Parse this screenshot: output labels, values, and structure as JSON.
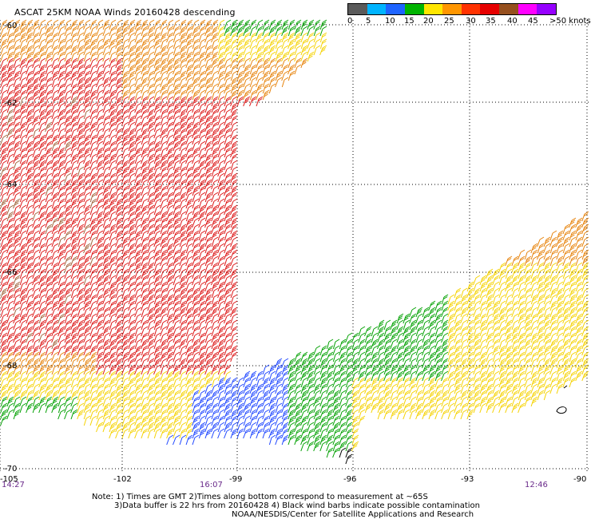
{
  "title": "ASCAT 25KM NOAA Winds 20160428 descending",
  "legend": {
    "colors": [
      "#5a5a5a",
      "#00b4ff",
      "#1e64ff",
      "#00b400",
      "#ffe600",
      "#ff9600",
      "#ff3200",
      "#e60000",
      "#96501e",
      "#ff00ff",
      "#9600ff"
    ],
    "labels": [
      "0",
      "5",
      "10",
      "15",
      "20",
      "25",
      "30",
      "35",
      "40",
      "45",
      ">50 knots"
    ]
  },
  "map": {
    "lat_labels": [
      "-60",
      "-62",
      "-64",
      "-66",
      "-68",
      "-70"
    ],
    "lon_labels": [
      "-105",
      "-102",
      "-99",
      "-96",
      "-93",
      "-90"
    ],
    "time_labels": [
      "14:27",
      "16:07",
      "12:46"
    ],
    "swath_colors": {
      "red": "#dc1414",
      "orange": "#e6820a",
      "yellow": "#f5d200",
      "green": "#00a000",
      "blue": "#1e46ff",
      "brown": "#a0643c",
      "black": "#000000"
    }
  },
  "notes": {
    "line1": "Note: 1) Times are GMT 2)Times along bottom correspond to measurement at ~65S",
    "line2": "3)Data buffer is 22 hrs from 20160428 4) Black wind barbs indicate possible contamination",
    "line3": "NOAA/NESDIS/Center for Satellite Applications and Research"
  }
}
